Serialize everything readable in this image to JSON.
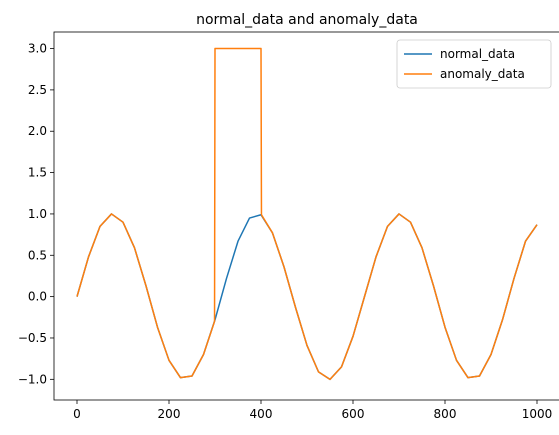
{
  "chart_data": {
    "type": "line",
    "title": "normal_data and anomaly_data",
    "xlabel": "",
    "ylabel": "",
    "xlim": [
      -50,
      1050
    ],
    "ylim": [
      -1.25,
      3.2
    ],
    "xticks": [
      0,
      200,
      400,
      600,
      800,
      1000
    ],
    "xtick_labels": [
      "0",
      "200",
      "400",
      "600",
      "800",
      "1000"
    ],
    "yticks": [
      -1.0,
      -0.5,
      0.0,
      0.5,
      1.0,
      1.5,
      2.0,
      2.5,
      3.0
    ],
    "ytick_labels": [
      "−1.0",
      "−0.5",
      "0.0",
      "0.5",
      "1.0",
      "1.5",
      "2.0",
      "2.5",
      "3.0"
    ],
    "grid": false,
    "legend_position": "top-right",
    "series": [
      {
        "name": "normal_data",
        "color": "#1f77b4",
        "x": [
          0,
          25,
          50,
          75,
          100,
          125,
          150,
          175,
          200,
          225,
          250,
          275,
          300,
          325,
          350,
          375,
          400,
          425,
          450,
          475,
          500,
          525,
          550,
          575,
          600,
          625,
          650,
          675,
          700,
          725,
          750,
          775,
          800,
          825,
          850,
          875,
          900,
          925,
          950,
          975,
          1000
        ],
        "y": [
          0.0,
          0.48,
          0.85,
          1.0,
          0.9,
          0.59,
          0.13,
          -0.37,
          -0.77,
          -0.98,
          -0.96,
          -0.7,
          -0.28,
          0.22,
          0.67,
          0.95,
          0.99,
          0.77,
          0.36,
          -0.13,
          -0.59,
          -0.91,
          -1.0,
          -0.85,
          -0.48,
          0.0,
          0.48,
          0.85,
          1.0,
          0.9,
          0.59,
          0.13,
          -0.37,
          -0.77,
          -0.98,
          -0.96,
          -0.7,
          -0.28,
          0.22,
          0.67,
          0.87
        ]
      },
      {
        "name": "anomaly_data",
        "color": "#ff7f0e",
        "x": [
          0,
          25,
          50,
          75,
          100,
          125,
          150,
          175,
          200,
          225,
          250,
          275,
          299,
          300,
          325,
          350,
          375,
          400,
          401,
          425,
          450,
          475,
          500,
          525,
          550,
          575,
          600,
          625,
          650,
          675,
          700,
          725,
          750,
          775,
          800,
          825,
          850,
          875,
          900,
          925,
          950,
          975,
          1000
        ],
        "y": [
          0.0,
          0.48,
          0.85,
          1.0,
          0.9,
          0.59,
          0.13,
          -0.37,
          -0.77,
          -0.98,
          -0.96,
          -0.7,
          -0.3,
          3.0,
          3.0,
          3.0,
          3.0,
          3.0,
          0.99,
          0.77,
          0.36,
          -0.13,
          -0.59,
          -0.91,
          -1.0,
          -0.85,
          -0.48,
          0.0,
          0.48,
          0.85,
          1.0,
          0.9,
          0.59,
          0.13,
          -0.37,
          -0.77,
          -0.98,
          -0.96,
          -0.7,
          -0.28,
          0.22,
          0.67,
          0.87
        ]
      }
    ]
  }
}
